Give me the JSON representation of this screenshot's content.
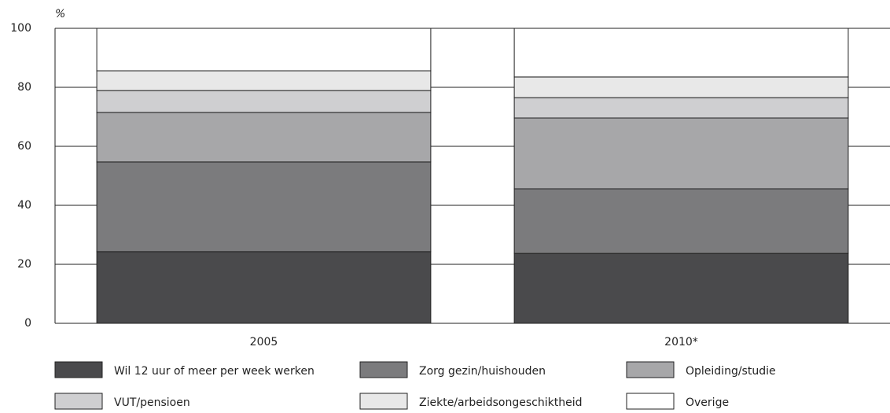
{
  "chart_data": {
    "type": "stacked_bar",
    "ylabel": "%",
    "categories": [
      "2005",
      "2010*"
    ],
    "series": [
      {
        "name": "Wil 12 uur of meer per week werken",
        "color": "#4a4a4c",
        "values": [
          24.3,
          23.7
        ]
      },
      {
        "name": "Zorg gezin/huishouden",
        "color": "#7b7b7d",
        "values": [
          30.4,
          21.9
        ]
      },
      {
        "name": "Opleiding/studie",
        "color": "#a7a7a9",
        "values": [
          16.8,
          24.0
        ]
      },
      {
        "name": "VUT/pensioen",
        "color": "#cfcfd1",
        "values": [
          7.4,
          6.9
        ]
      },
      {
        "name": "Ziekte/arbeidsongeschiktheid",
        "color": "#e8e8e8",
        "values": [
          6.7,
          7.0
        ]
      },
      {
        "name": "Overige",
        "color": "#ffffff",
        "values": [
          14.4,
          16.5
        ]
      }
    ],
    "ylim": [
      0,
      100
    ],
    "yticks": [
      0,
      20,
      40,
      60,
      80,
      100
    ],
    "grid": true
  }
}
